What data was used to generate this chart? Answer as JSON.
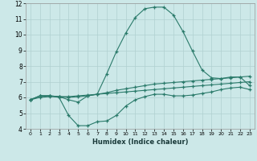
{
  "xlabel": "Humidex (Indice chaleur)",
  "bg_color": "#cce8e8",
  "grid_color": "#b0d0d0",
  "line_color": "#2a7a6a",
  "xlim": [
    -0.5,
    23.5
  ],
  "ylim": [
    4,
    12
  ],
  "xticks": [
    0,
    1,
    2,
    3,
    4,
    5,
    6,
    7,
    8,
    9,
    10,
    11,
    12,
    13,
    14,
    15,
    16,
    17,
    18,
    19,
    20,
    21,
    22,
    23
  ],
  "yticks": [
    4,
    5,
    6,
    7,
    8,
    9,
    10,
    11,
    12
  ],
  "series_peak_x": [
    0,
    1,
    2,
    3,
    4,
    5,
    6,
    7,
    8,
    9,
    10,
    11,
    12,
    13,
    14,
    15,
    16,
    17,
    18,
    19,
    20,
    21,
    22,
    23
  ],
  "series_peak_y": [
    5.85,
    6.1,
    6.1,
    6.05,
    5.85,
    5.7,
    6.1,
    6.2,
    7.5,
    8.9,
    10.1,
    11.1,
    11.65,
    11.75,
    11.75,
    11.25,
    10.2,
    8.95,
    7.75,
    7.25,
    7.2,
    7.3,
    7.3,
    6.75
  ],
  "series_dip_x": [
    0,
    1,
    2,
    3,
    4,
    5,
    6,
    7,
    8,
    9,
    10,
    11,
    12,
    13,
    14,
    15,
    16,
    17,
    18,
    19,
    20,
    21,
    22,
    23
  ],
  "series_dip_y": [
    5.85,
    6.1,
    6.1,
    6.0,
    4.85,
    4.2,
    4.2,
    4.45,
    4.5,
    4.85,
    5.45,
    5.85,
    6.05,
    6.2,
    6.2,
    6.1,
    6.1,
    6.15,
    6.25,
    6.35,
    6.5,
    6.6,
    6.65,
    6.5
  ],
  "series_mid_x": [
    0,
    1,
    2,
    3,
    4,
    5,
    6,
    7,
    8,
    9,
    10,
    11,
    12,
    13,
    14,
    15,
    16,
    17,
    18,
    19,
    20,
    21,
    22,
    23
  ],
  "series_mid_y": [
    5.85,
    6.1,
    6.1,
    6.05,
    6.0,
    6.05,
    6.1,
    6.2,
    6.3,
    6.45,
    6.55,
    6.65,
    6.75,
    6.85,
    6.9,
    6.95,
    7.0,
    7.05,
    7.1,
    7.15,
    7.2,
    7.25,
    7.3,
    7.35
  ],
  "series_flat_x": [
    0,
    1,
    2,
    3,
    4,
    5,
    6,
    7,
    8,
    9,
    10,
    11,
    12,
    13,
    14,
    15,
    16,
    17,
    18,
    19,
    20,
    21,
    22,
    23
  ],
  "series_flat_y": [
    5.85,
    6.0,
    6.05,
    6.05,
    6.05,
    6.1,
    6.15,
    6.2,
    6.25,
    6.3,
    6.35,
    6.4,
    6.45,
    6.5,
    6.55,
    6.6,
    6.65,
    6.7,
    6.75,
    6.8,
    6.85,
    6.9,
    6.95,
    7.0
  ]
}
